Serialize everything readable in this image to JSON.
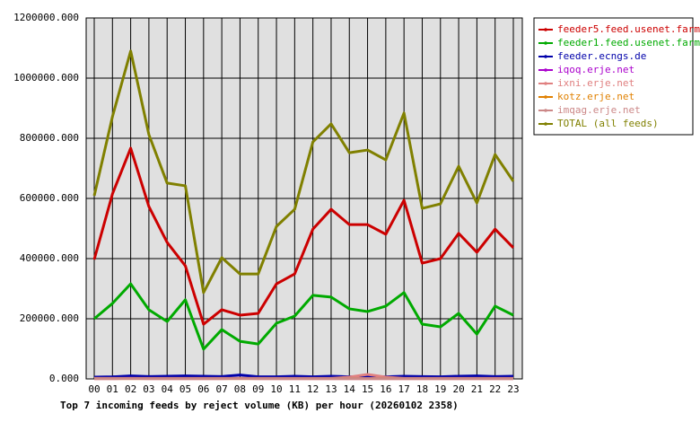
{
  "chart_data": {
    "type": "line",
    "title": "Top 7 incoming feeds by reject volume (KB) per hour (20260102 2358)",
    "categories": [
      "00",
      "01",
      "02",
      "03",
      "04",
      "05",
      "06",
      "07",
      "08",
      "09",
      "10",
      "11",
      "12",
      "13",
      "14",
      "15",
      "16",
      "17",
      "18",
      "19",
      "20",
      "21",
      "22",
      "23"
    ],
    "ylim": [
      0,
      1200000
    ],
    "yticks": [
      {
        "value": 0,
        "label": "0.000"
      },
      {
        "value": 200000,
        "label": "200000.000"
      },
      {
        "value": 400000,
        "label": "400000.000"
      },
      {
        "value": 600000,
        "label": "600000.000"
      },
      {
        "value": 800000,
        "label": "800000.000"
      },
      {
        "value": 1000000,
        "label": "1000000.000"
      },
      {
        "value": 1200000,
        "label": "1200000.000"
      }
    ],
    "grid": true,
    "series": [
      {
        "name": "feeder5.feed.usenet.farm",
        "color": "#cc0000",
        "values": [
          397000,
          615000,
          767000,
          573000,
          454000,
          376000,
          182000,
          230000,
          212000,
          218000,
          316000,
          349000,
          498000,
          564000,
          513000,
          513000,
          481000,
          594000,
          385000,
          400000,
          484000,
          421000,
          498000,
          436000
        ]
      },
      {
        "name": "feeder1.feed.usenet.farm",
        "color": "#00aa00",
        "values": [
          200000,
          251000,
          316000,
          230000,
          191000,
          263000,
          99000,
          164000,
          125000,
          116000,
          185000,
          209000,
          278000,
          272000,
          233000,
          224000,
          242000,
          287000,
          182000,
          173000,
          218000,
          149000,
          242000,
          212000
        ]
      },
      {
        "name": "feeder.ecngs.de",
        "color": "#0000aa",
        "values": [
          6000,
          7000,
          10000,
          8000,
          9000,
          10000,
          9000,
          8000,
          13000,
          7000,
          7000,
          9000,
          7000,
          9000,
          7000,
          6000,
          7000,
          9000,
          8000,
          7000,
          9000,
          10000,
          8000,
          9000
        ]
      },
      {
        "name": "iqoq.erje.net",
        "color": "#aa00cc",
        "values": [
          1000,
          1000,
          2000,
          1000,
          1000,
          1000,
          1000,
          1000,
          2000,
          1000,
          1000,
          1000,
          1000,
          1000,
          1000,
          1000,
          1000,
          1000,
          1000,
          1000,
          1000,
          1000,
          1000,
          1000
        ]
      },
      {
        "name": "ixni.erje.net",
        "color": "#e08080",
        "values": [
          2000,
          2000,
          2000,
          2000,
          2000,
          2000,
          2000,
          2000,
          2000,
          2000,
          2000,
          2000,
          2000,
          2000,
          6000,
          15000,
          6000,
          2000,
          2000,
          2000,
          2000,
          2000,
          2000,
          2000
        ]
      },
      {
        "name": "kotz.erje.net",
        "color": "#e08000",
        "values": [
          1000,
          1000,
          1000,
          1000,
          1000,
          1000,
          1000,
          1000,
          1000,
          1000,
          1000,
          1000,
          1000,
          1000,
          1000,
          1000,
          1000,
          1000,
          1000,
          1000,
          1000,
          1000,
          1000,
          1000
        ]
      },
      {
        "name": "imqag.erje.net",
        "color": "#cc8888",
        "values": [
          1000,
          1000,
          1000,
          1000,
          1000,
          1000,
          1000,
          1000,
          1000,
          1000,
          1000,
          1000,
          1000,
          1000,
          1000,
          1000,
          1000,
          1000,
          1000,
          1000,
          1000,
          1000,
          1000,
          1000
        ]
      },
      {
        "name": "TOTAL (all feeds)",
        "color": "#808000",
        "values": [
          609000,
          872000,
          1090000,
          812000,
          651000,
          642000,
          287000,
          403000,
          349000,
          349000,
          507000,
          564000,
          788000,
          848000,
          752000,
          761000,
          728000,
          884000,
          567000,
          582000,
          707000,
          585000,
          746000,
          657000
        ]
      }
    ]
  }
}
